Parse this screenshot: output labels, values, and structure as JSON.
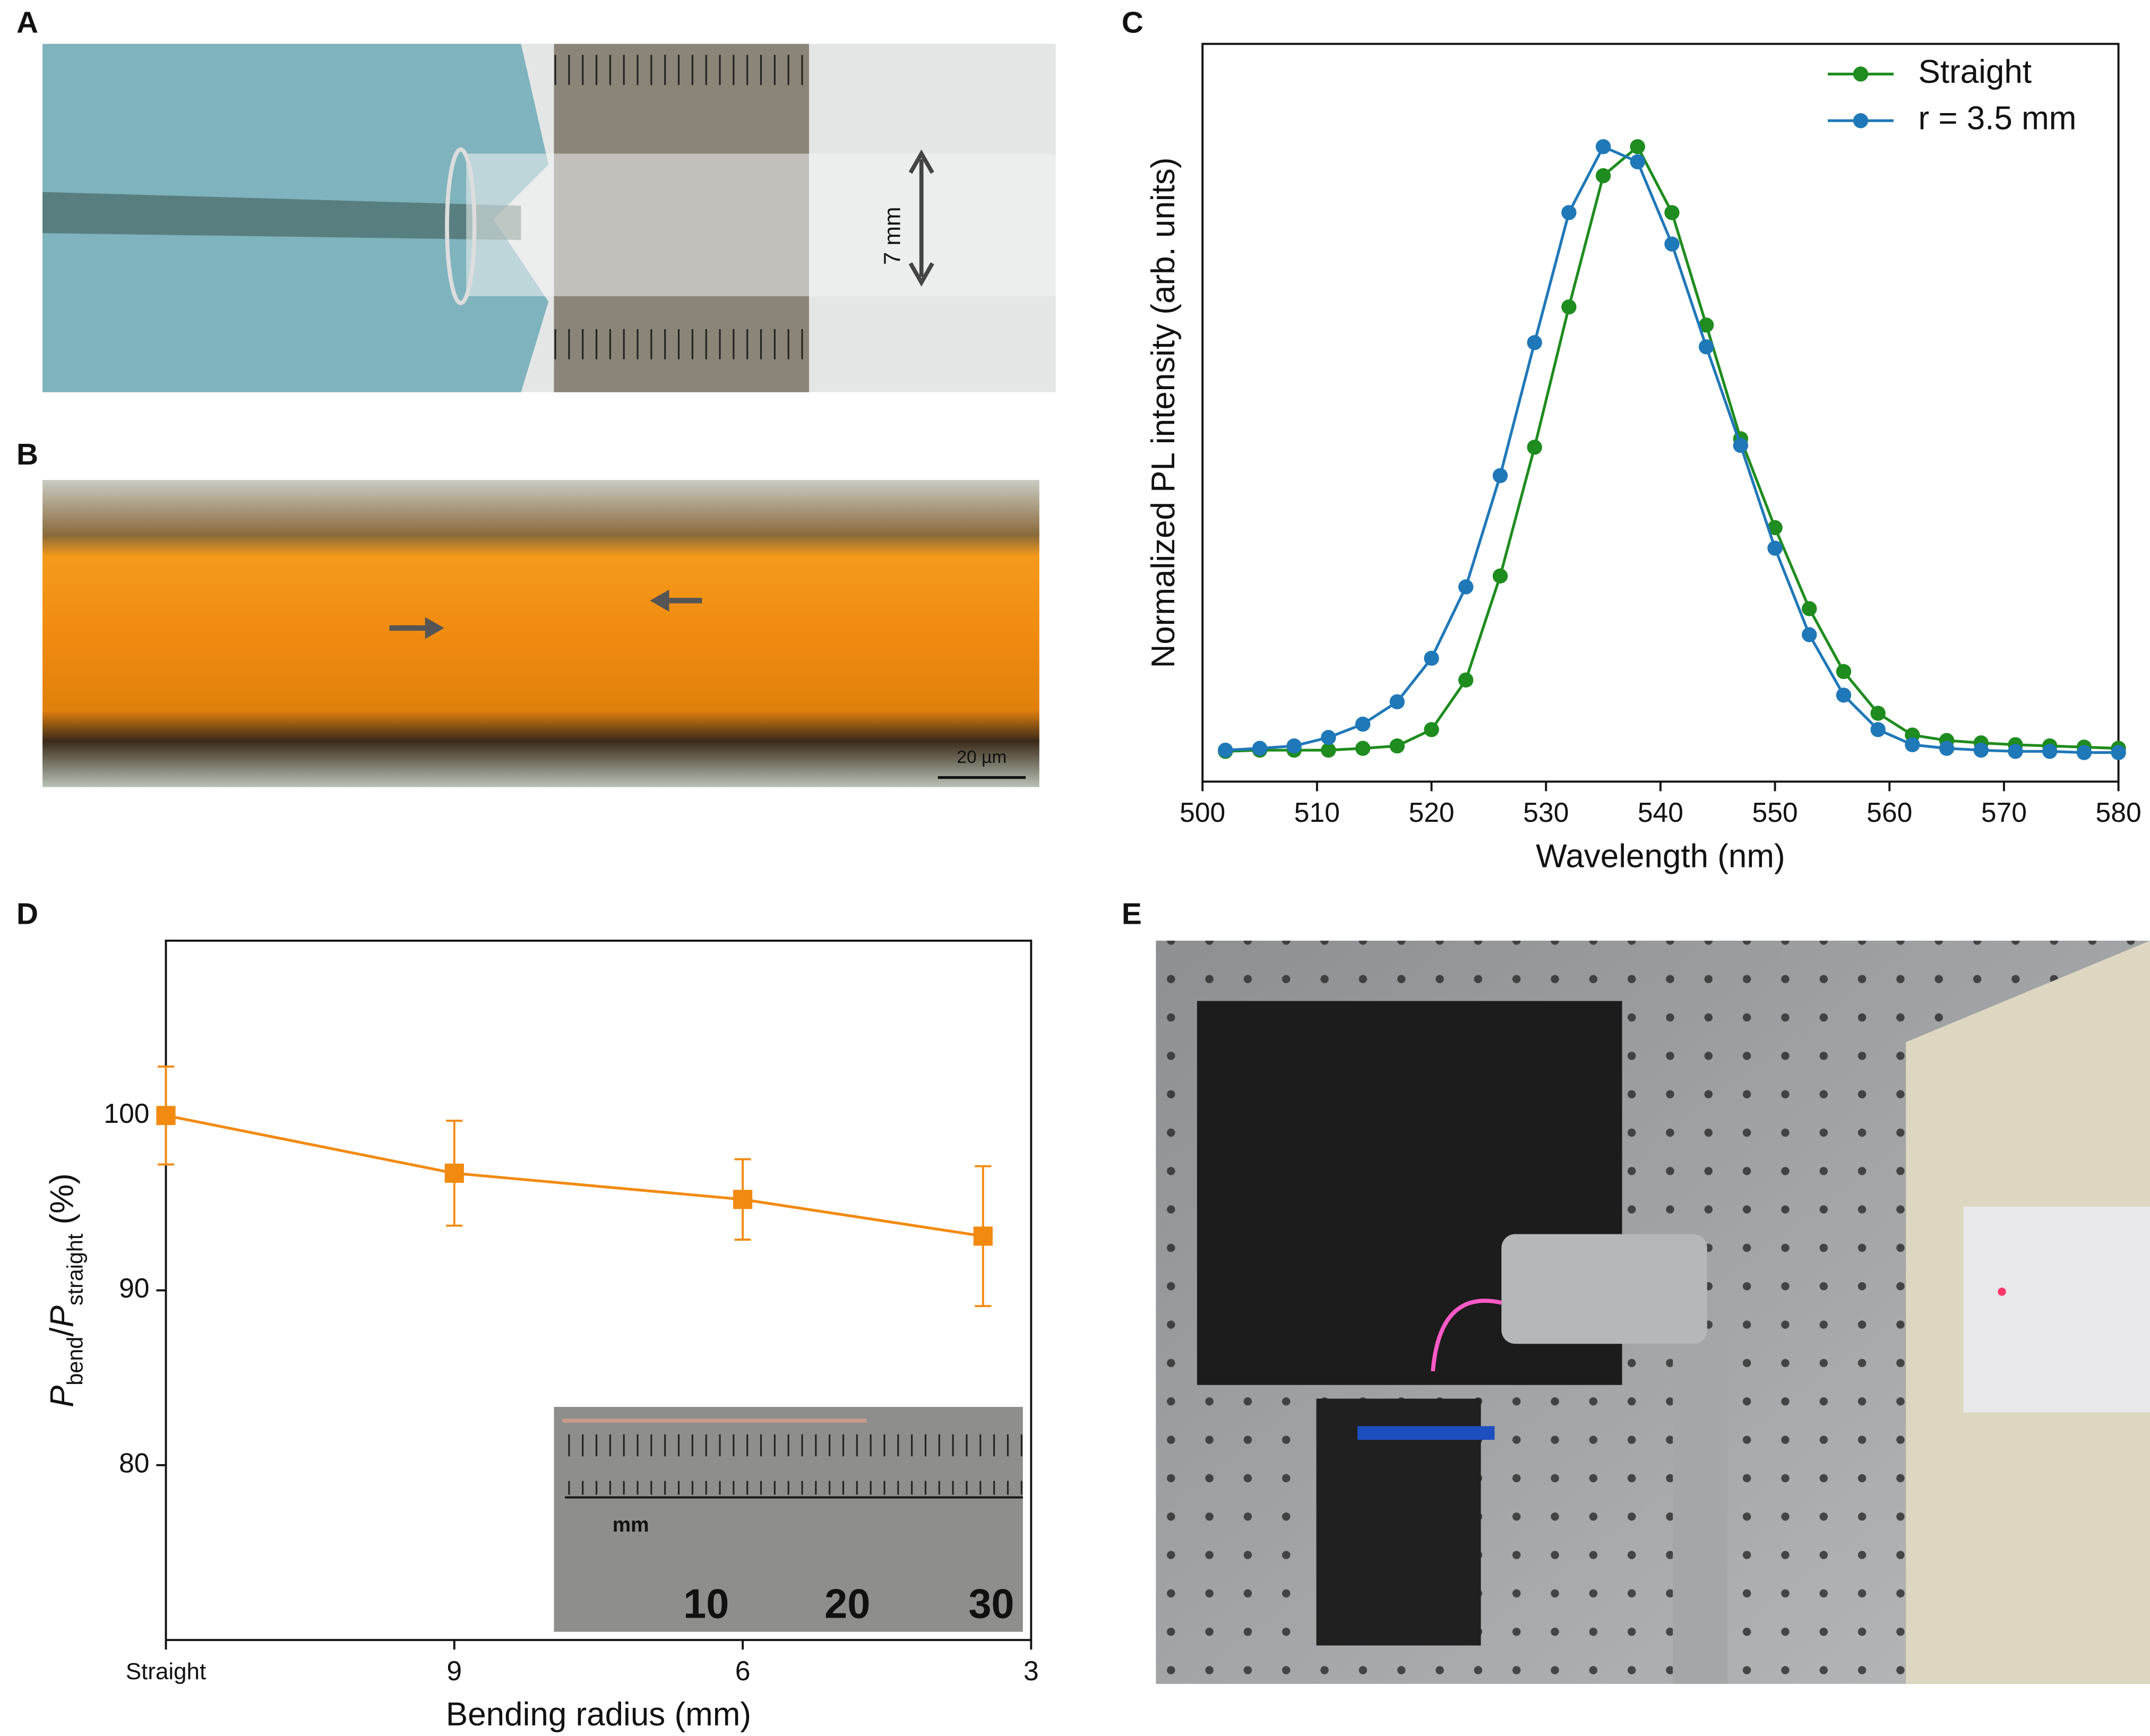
{
  "panels": [
    "A",
    "B",
    "C",
    "D",
    "E"
  ],
  "photos": {
    "a_scale": "7 mm",
    "b_scale": "20 µm",
    "d_inset": [
      "mm",
      "10",
      "20",
      "30"
    ]
  },
  "chart_data": [
    {
      "type": "line",
      "xlabel": "Wavelength (nm)",
      "ylabel": "Normalized PL intensity (arb. units)",
      "x": [
        502,
        505,
        508,
        511,
        514,
        517,
        520,
        523,
        526,
        529,
        532,
        535,
        538,
        541,
        544,
        547,
        550,
        553,
        556,
        559,
        562,
        565,
        568,
        571,
        574,
        577,
        580
      ],
      "series": [
        {
          "name": "Straight",
          "color": "#1e8c1e",
          "values": [
            0,
            0.002,
            0.002,
            0.002,
            0.005,
            0.009,
            0.036,
            0.118,
            0.29,
            0.503,
            0.735,
            0.952,
            1.0,
            0.891,
            0.705,
            0.517,
            0.37,
            0.236,
            0.132,
            0.063,
            0.027,
            0.018,
            0.014,
            0.011,
            0.009,
            0.007,
            0.005
          ]
        },
        {
          "name": "r = 3.5 mm",
          "color": "#1f78b8",
          "values": [
            0.002,
            0.005,
            0.009,
            0.023,
            0.045,
            0.082,
            0.154,
            0.272,
            0.456,
            0.676,
            0.891,
            1.0,
            0.975,
            0.839,
            0.669,
            0.506,
            0.336,
            0.193,
            0.093,
            0.036,
            0.011,
            0.005,
            0.002,
            0,
            0,
            -0.002,
            -0.002
          ]
        }
      ],
      "xlim": [
        500,
        580
      ],
      "xticks": [
        500,
        510,
        520,
        530,
        540,
        550,
        560,
        570,
        580
      ],
      "ylim": [
        -0.05,
        1.17
      ],
      "legend": "upper right"
    },
    {
      "type": "line",
      "xlabel": "Bending radius (mm)",
      "ylabel": [
        "P",
        "bend",
        "/",
        "P",
        "straight",
        " (%)"
      ],
      "x": [
        12,
        9,
        6,
        3.5
      ],
      "series": [
        {
          "color": "#f28a10",
          "values": [
            100,
            96.7,
            95.2,
            93.1
          ],
          "errors": [
            2.8,
            3.0,
            2.3,
            4.0
          ]
        }
      ],
      "xlim": [
        12,
        3
      ],
      "xticks": [
        {
          "value": 12,
          "label": "Straight"
        },
        9,
        6,
        3
      ],
      "ylim": [
        70,
        110
      ],
      "yticks": [
        80,
        90,
        100
      ]
    }
  ]
}
